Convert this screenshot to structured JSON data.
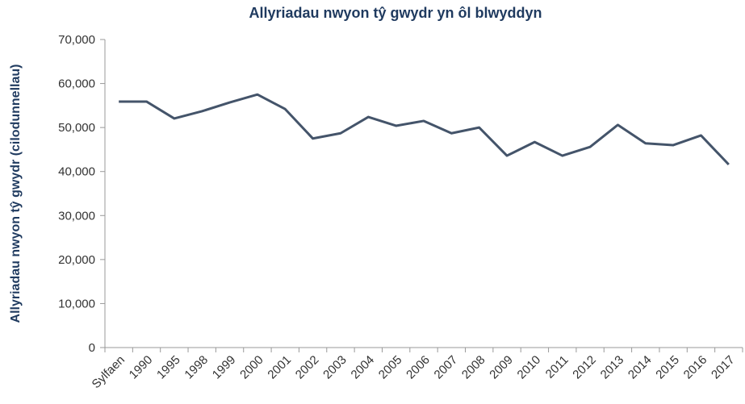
{
  "chart_data": {
    "type": "line",
    "title": "Allyriadau  nwyon tŷ gwydr yn ôl blwyddyn",
    "y_label": "Allyriadau nwyon tŷ gwydr (cilodunnellau)",
    "categories": [
      "Sylfaen",
      "1990",
      "1995",
      "1998",
      "1999",
      "2000",
      "2001",
      "2002",
      "2003",
      "2004",
      "2005",
      "2006",
      "2007",
      "2008",
      "2009",
      "2010",
      "2011",
      "2012",
      "2013",
      "2014",
      "2015",
      "2016",
      "2017"
    ],
    "series": [
      {
        "color": "#44546a",
        "values": [
          55900,
          55900,
          52050,
          53700,
          55700,
          57500,
          54200,
          47500,
          48700,
          52400,
          50400,
          51500,
          48700,
          50000,
          43600,
          46700,
          43600,
          45600,
          50600,
          46400,
          46000,
          48200,
          41600
        ]
      }
    ],
    "ylim": [
      0,
      70000
    ],
    "yticks": [
      0,
      {
        "value": 10000,
        "label": "10,000"
      },
      {
        "value": 20000,
        "label": "20,000"
      },
      {
        "value": 30000,
        "label": "30,000"
      },
      {
        "value": 40000,
        "label": "40,000"
      },
      {
        "value": 50000,
        "label": "50,000"
      },
      {
        "value": 60000,
        "label": "60,000"
      },
      {
        "value": 70000,
        "label": "70,000"
      }
    ]
  }
}
